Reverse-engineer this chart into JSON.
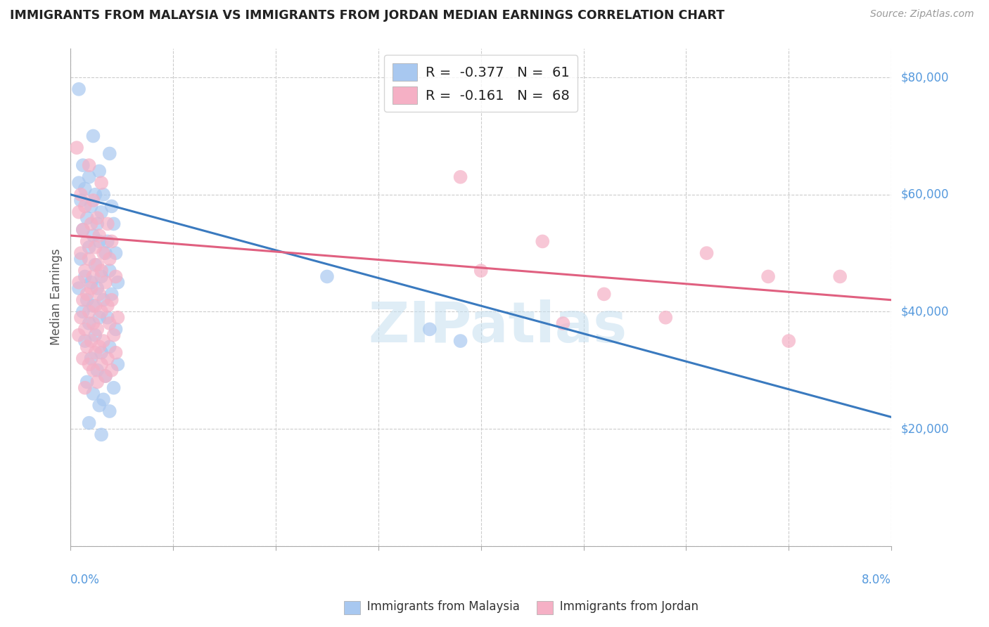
{
  "title": "IMMIGRANTS FROM MALAYSIA VS IMMIGRANTS FROM JORDAN MEDIAN EARNINGS CORRELATION CHART",
  "source": "Source: ZipAtlas.com",
  "ylabel": "Median Earnings",
  "xmin": 0.0,
  "xmax": 8.0,
  "ymin": 0,
  "ymax": 85000,
  "watermark": "ZIPatlas",
  "series": [
    {
      "label": "Immigrants from Malaysia",
      "R": -0.377,
      "N": 61,
      "color": "#a8c8f0",
      "line_color": "#3a7abf"
    },
    {
      "label": "Immigrants from Jordan",
      "R": -0.161,
      "N": 68,
      "color": "#f5b0c5",
      "line_color": "#e06080"
    }
  ],
  "malaysia_points": [
    [
      0.08,
      78000
    ],
    [
      0.22,
      70000
    ],
    [
      0.38,
      67000
    ],
    [
      0.12,
      65000
    ],
    [
      0.28,
      64000
    ],
    [
      0.18,
      63000
    ],
    [
      0.08,
      62000
    ],
    [
      0.14,
      61000
    ],
    [
      0.32,
      60000
    ],
    [
      0.24,
      60000
    ],
    [
      0.1,
      59000
    ],
    [
      0.2,
      58000
    ],
    [
      0.4,
      58000
    ],
    [
      0.3,
      57000
    ],
    [
      0.16,
      56000
    ],
    [
      0.26,
      55000
    ],
    [
      0.42,
      55000
    ],
    [
      0.12,
      54000
    ],
    [
      0.22,
      53000
    ],
    [
      0.36,
      52000
    ],
    [
      0.28,
      52000
    ],
    [
      0.18,
      51000
    ],
    [
      0.34,
      50000
    ],
    [
      0.44,
      50000
    ],
    [
      0.1,
      49000
    ],
    [
      0.24,
      48000
    ],
    [
      0.38,
      47000
    ],
    [
      0.14,
      46000
    ],
    [
      0.3,
      46000
    ],
    [
      0.2,
      45000
    ],
    [
      0.46,
      45000
    ],
    [
      0.08,
      44000
    ],
    [
      0.26,
      44000
    ],
    [
      0.4,
      43000
    ],
    [
      0.16,
      42000
    ],
    [
      0.32,
      42000
    ],
    [
      0.22,
      41000
    ],
    [
      0.12,
      40000
    ],
    [
      0.36,
      39000
    ],
    [
      0.28,
      39000
    ],
    [
      0.18,
      38000
    ],
    [
      0.44,
      37000
    ],
    [
      0.24,
      36000
    ],
    [
      0.14,
      35000
    ],
    [
      0.38,
      34000
    ],
    [
      0.3,
      33000
    ],
    [
      0.2,
      32000
    ],
    [
      0.46,
      31000
    ],
    [
      0.26,
      30000
    ],
    [
      0.34,
      29000
    ],
    [
      0.16,
      28000
    ],
    [
      0.42,
      27000
    ],
    [
      0.22,
      26000
    ],
    [
      0.32,
      25000
    ],
    [
      0.28,
      24000
    ],
    [
      0.38,
      23000
    ],
    [
      0.18,
      21000
    ],
    [
      0.3,
      19000
    ],
    [
      2.5,
      46000
    ],
    [
      3.5,
      37000
    ],
    [
      3.8,
      35000
    ]
  ],
  "jordan_points": [
    [
      0.06,
      68000
    ],
    [
      0.18,
      65000
    ],
    [
      0.3,
      62000
    ],
    [
      0.1,
      60000
    ],
    [
      0.22,
      59000
    ],
    [
      0.14,
      58000
    ],
    [
      0.08,
      57000
    ],
    [
      0.26,
      56000
    ],
    [
      0.2,
      55000
    ],
    [
      0.36,
      55000
    ],
    [
      0.12,
      54000
    ],
    [
      0.28,
      53000
    ],
    [
      0.16,
      52000
    ],
    [
      0.4,
      52000
    ],
    [
      0.24,
      51000
    ],
    [
      0.32,
      50000
    ],
    [
      0.1,
      50000
    ],
    [
      0.18,
      49000
    ],
    [
      0.38,
      49000
    ],
    [
      0.26,
      48000
    ],
    [
      0.14,
      47000
    ],
    [
      0.3,
      47000
    ],
    [
      0.22,
      46000
    ],
    [
      0.44,
      46000
    ],
    [
      0.08,
      45000
    ],
    [
      0.34,
      45000
    ],
    [
      0.2,
      44000
    ],
    [
      0.16,
      43000
    ],
    [
      0.28,
      43000
    ],
    [
      0.4,
      42000
    ],
    [
      0.12,
      42000
    ],
    [
      0.24,
      41000
    ],
    [
      0.36,
      41000
    ],
    [
      0.18,
      40000
    ],
    [
      0.3,
      40000
    ],
    [
      0.46,
      39000
    ],
    [
      0.1,
      39000
    ],
    [
      0.22,
      38000
    ],
    [
      0.38,
      38000
    ],
    [
      0.14,
      37000
    ],
    [
      0.26,
      37000
    ],
    [
      0.42,
      36000
    ],
    [
      0.08,
      36000
    ],
    [
      0.32,
      35000
    ],
    [
      0.2,
      35000
    ],
    [
      0.16,
      34000
    ],
    [
      0.28,
      34000
    ],
    [
      0.44,
      33000
    ],
    [
      0.24,
      33000
    ],
    [
      0.36,
      32000
    ],
    [
      0.12,
      32000
    ],
    [
      0.18,
      31000
    ],
    [
      0.3,
      31000
    ],
    [
      0.4,
      30000
    ],
    [
      0.22,
      30000
    ],
    [
      0.34,
      29000
    ],
    [
      0.26,
      28000
    ],
    [
      0.14,
      27000
    ],
    [
      3.8,
      63000
    ],
    [
      4.6,
      52000
    ],
    [
      4.0,
      47000
    ],
    [
      5.2,
      43000
    ],
    [
      6.2,
      50000
    ],
    [
      6.8,
      46000
    ],
    [
      7.5,
      46000
    ],
    [
      7.0,
      35000
    ],
    [
      5.8,
      39000
    ],
    [
      4.8,
      38000
    ]
  ],
  "malaysia_trend": [
    0.0,
    8.0,
    60000,
    22000
  ],
  "jordan_trend": [
    0.0,
    8.0,
    53000,
    42000
  ]
}
